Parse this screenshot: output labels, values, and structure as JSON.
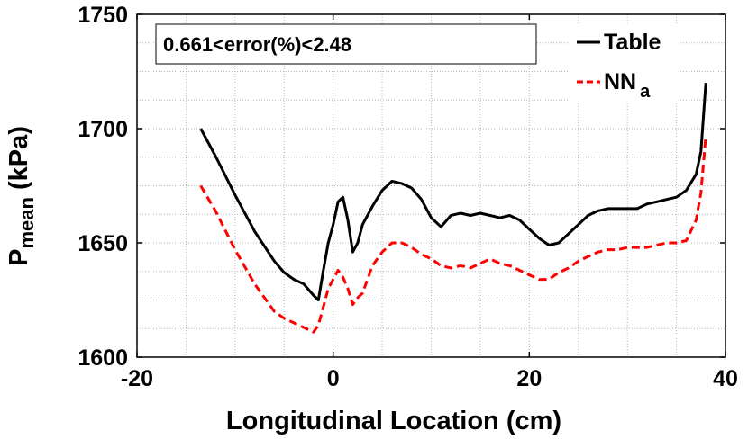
{
  "chart_data": {
    "type": "line",
    "title": "",
    "xlabel": "Longitudinal Location (cm)",
    "ylabel_main": "P",
    "ylabel_sub": "mean",
    "ylabel_unit": "(kPa)",
    "xlim": [
      -20,
      40
    ],
    "ylim": [
      1600,
      1750
    ],
    "xticks": [
      -20,
      0,
      20,
      40
    ],
    "yticks": [
      1600,
      1650,
      1700,
      1750
    ],
    "grid": true,
    "legend_placement": "top-right",
    "annotation": "0.661<error(%)<2.48",
    "series": [
      {
        "name": "Table",
        "legend_main": "Table",
        "legend_sub": "",
        "color": "#000000",
        "style": "solid",
        "x": [
          -13.5,
          -12,
          -10,
          -8,
          -6,
          -5,
          -4,
          -3,
          -2,
          -1.5,
          -1,
          -0.5,
          0,
          0.5,
          1,
          1.5,
          2,
          2.5,
          3,
          4,
          5,
          6,
          7,
          8,
          9,
          10,
          11,
          12,
          13,
          14,
          15,
          16,
          17,
          18,
          19,
          20,
          21,
          22,
          23,
          24,
          25,
          26,
          27,
          28,
          29,
          30,
          31,
          32,
          33,
          34,
          35,
          36,
          37,
          37.5,
          38
        ],
        "y": [
          1700,
          1688,
          1671,
          1655,
          1642,
          1637,
          1634,
          1632,
          1627,
          1625,
          1638,
          1650,
          1658,
          1668,
          1670,
          1660,
          1646,
          1650,
          1658,
          1666,
          1673,
          1677,
          1676,
          1674,
          1669,
          1661,
          1657,
          1662,
          1663,
          1662,
          1663,
          1662,
          1661,
          1662,
          1660,
          1656,
          1652,
          1649,
          1650,
          1654,
          1658,
          1662,
          1664,
          1665,
          1665,
          1665,
          1665,
          1667,
          1668,
          1669,
          1670,
          1673,
          1680,
          1690,
          1720
        ]
      },
      {
        "name": "NN_a",
        "legend_main": "NN",
        "legend_sub": "a",
        "color": "#ff0000",
        "style": "dashed",
        "x": [
          -13.5,
          -12,
          -10,
          -8,
          -6,
          -5,
          -4,
          -3,
          -2,
          -1.5,
          -1,
          -0.5,
          0,
          0.5,
          1,
          1.5,
          2,
          2.5,
          3,
          4,
          5,
          6,
          7,
          8,
          9,
          10,
          11,
          12,
          13,
          14,
          15,
          16,
          17,
          18,
          19,
          20,
          21,
          22,
          23,
          24,
          25,
          26,
          27,
          28,
          29,
          30,
          31,
          32,
          33,
          34,
          35,
          36,
          37,
          37.5,
          38
        ],
        "y": [
          1675,
          1664,
          1647,
          1632,
          1620,
          1617,
          1615,
          1613,
          1611,
          1614,
          1622,
          1630,
          1634,
          1638,
          1635,
          1630,
          1623,
          1626,
          1628,
          1640,
          1646,
          1650,
          1650,
          1648,
          1645,
          1643,
          1640,
          1639,
          1640,
          1639,
          1641,
          1643,
          1641,
          1640,
          1638,
          1636,
          1634,
          1634,
          1637,
          1639,
          1642,
          1644,
          1646,
          1647,
          1647,
          1648,
          1648,
          1648,
          1649,
          1650,
          1650,
          1651,
          1660,
          1672,
          1697
        ]
      }
    ]
  }
}
